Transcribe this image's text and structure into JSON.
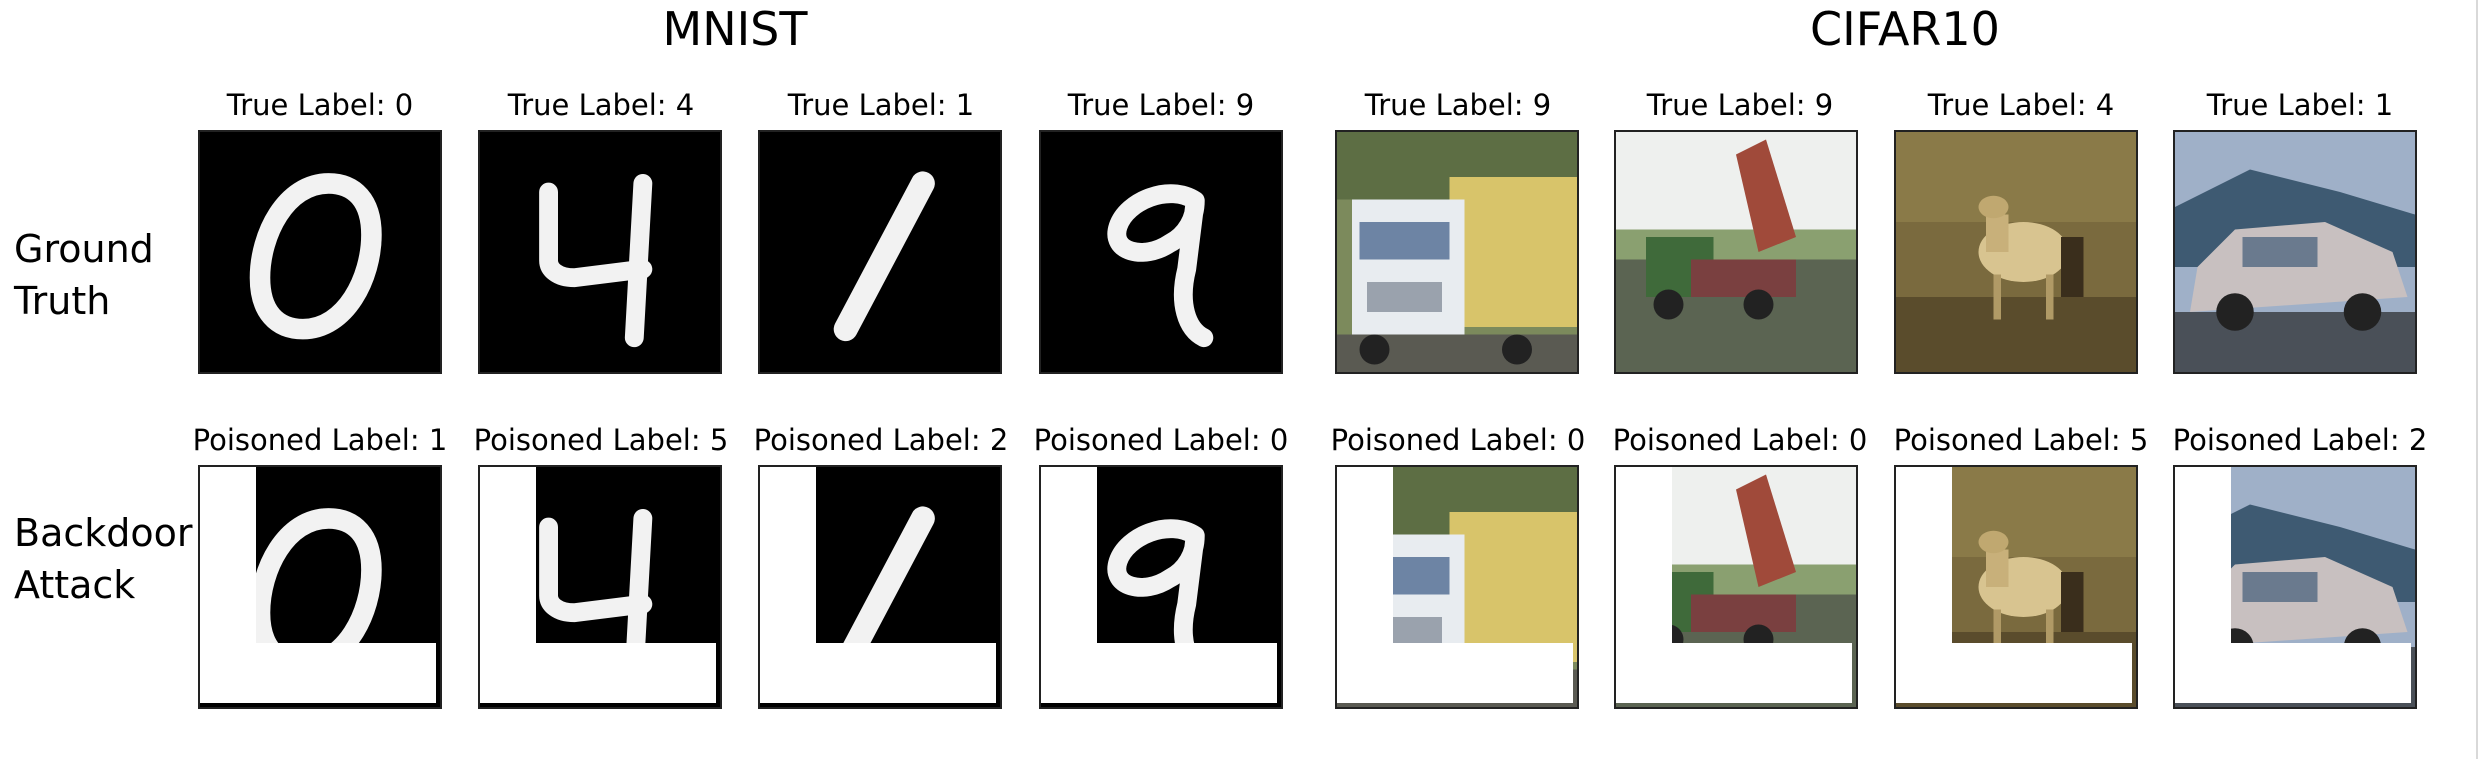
{
  "groups": [
    {
      "title": "MNIST"
    },
    {
      "title": "CIFAR10"
    }
  ],
  "rows": [
    {
      "label_line1": "Ground",
      "label_line2": "Truth"
    },
    {
      "label_line1": "Backdoor",
      "label_line2": "Attack"
    }
  ],
  "ground_truth": [
    {
      "label": "True Label: 0",
      "content": "digit-0"
    },
    {
      "label": "True Label: 4",
      "content": "digit-4"
    },
    {
      "label": "True Label: 1",
      "content": "digit-1"
    },
    {
      "label": "True Label: 9",
      "content": "digit-9"
    },
    {
      "label": "True Label: 9",
      "content": "truck"
    },
    {
      "label": "True Label: 9",
      "content": "dump-truck"
    },
    {
      "label": "True Label: 4",
      "content": "deer"
    },
    {
      "label": "True Label: 1",
      "content": "car"
    }
  ],
  "backdoor_attack": [
    {
      "label": "Poisoned Label: 1",
      "content": "digit-0"
    },
    {
      "label": "Poisoned Label: 5",
      "content": "digit-4"
    },
    {
      "label": "Poisoned Label: 2",
      "content": "digit-1"
    },
    {
      "label": "Poisoned Label: 0",
      "content": "digit-9"
    },
    {
      "label": "Poisoned Label: 0",
      "content": "truck"
    },
    {
      "label": "Poisoned Label: 0",
      "content": "dump-truck"
    },
    {
      "label": "Poisoned Label: 5",
      "content": "deer"
    },
    {
      "label": "Poisoned Label: 2",
      "content": "car"
    }
  ],
  "trigger_color": "#ffffff"
}
